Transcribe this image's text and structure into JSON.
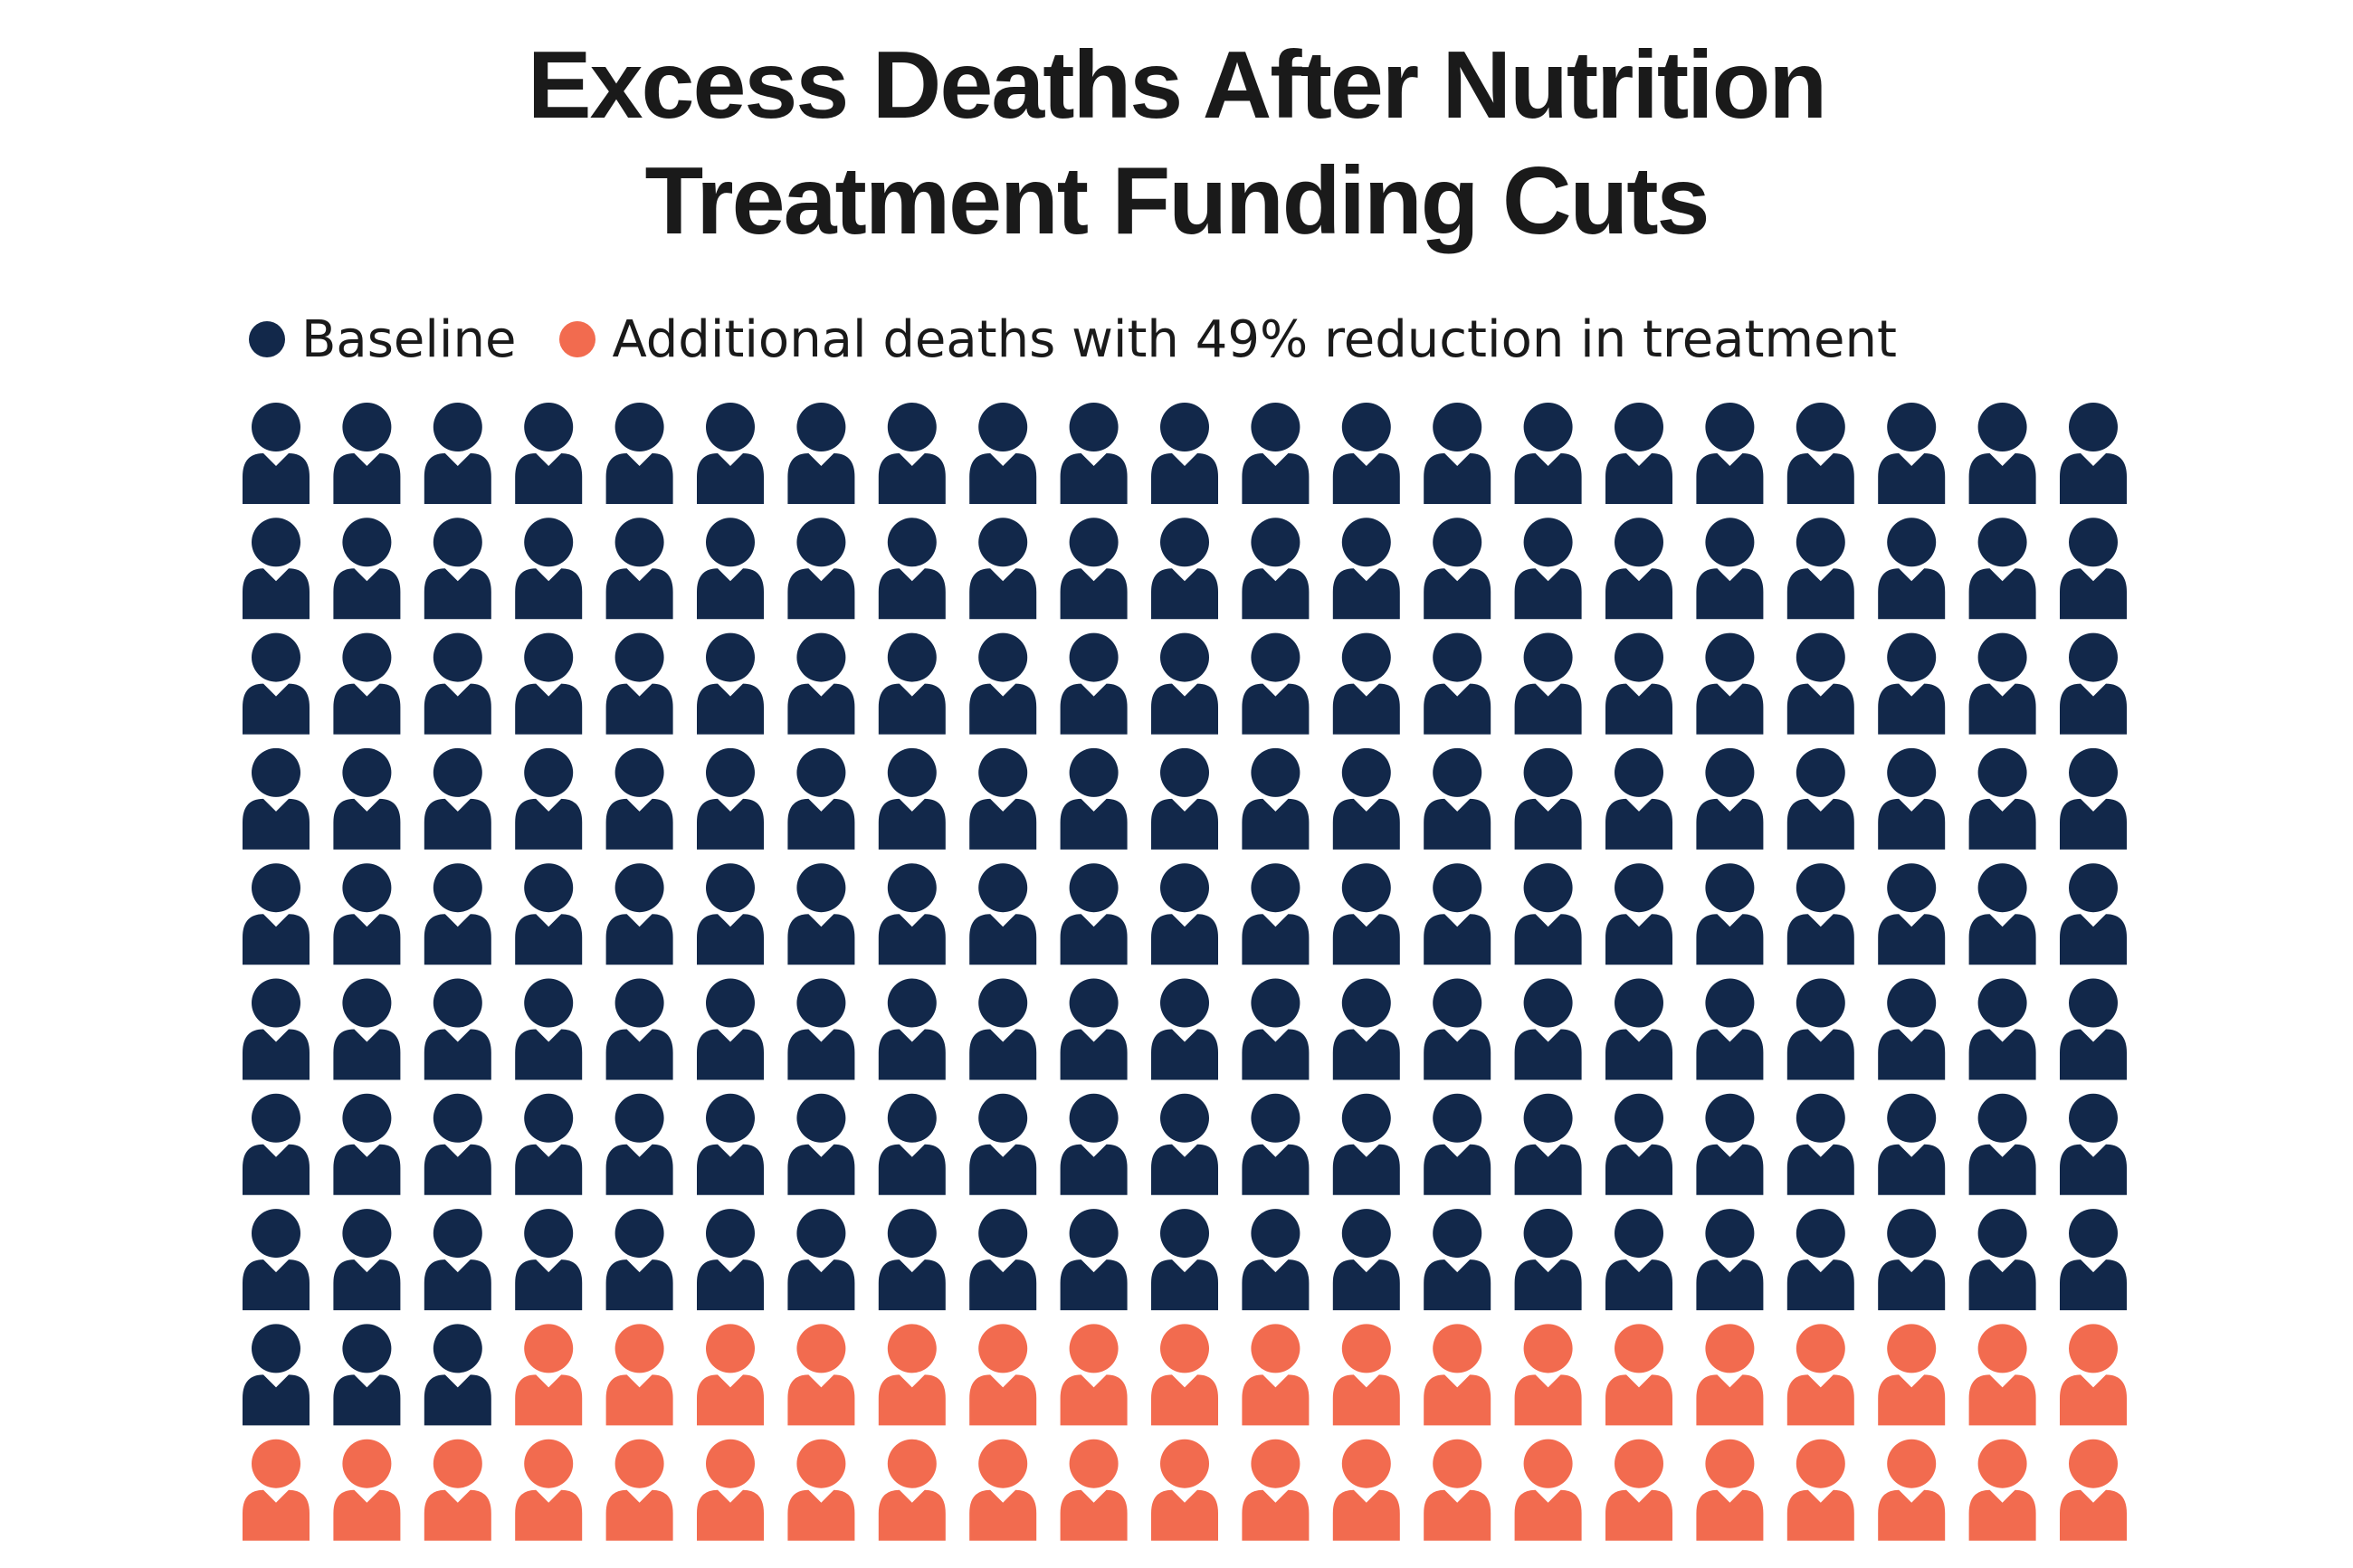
{
  "title": {
    "line1": "Excess Deaths After Nutrition",
    "line2": "Treatment Funding Cuts"
  },
  "legend": {
    "baseline_label": "Baseline",
    "additional_label": "Additional deaths with 49% reduction in treatment"
  },
  "colors": {
    "baseline": "#12284a",
    "additional": "#f26b4f"
  },
  "chart_data": {
    "type": "pictogram",
    "series": [
      {
        "name": "Baseline",
        "count": 171,
        "color": "#12284a"
      },
      {
        "name": "Additional deaths with 49% reduction in treatment",
        "count": 39,
        "color": "#f26b4f"
      }
    ],
    "total": 210,
    "columns": 21,
    "rows": 10,
    "icon": "person-icon",
    "fill_order": "row-major"
  }
}
